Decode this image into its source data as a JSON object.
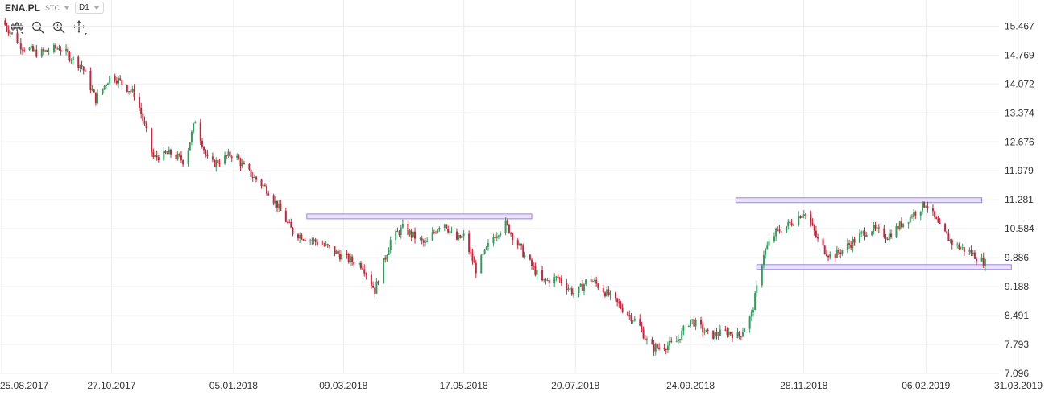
{
  "header": {
    "symbol": "ENA.PL",
    "market": "STC",
    "interval": "D1"
  },
  "toolbar": {
    "icons": [
      "candlestick-settings-icon",
      "zoom-out-icon",
      "zoom-in-icon",
      "crosshair-move-icon"
    ]
  },
  "colors": {
    "up": "#2e9e5b",
    "down": "#c8253b",
    "zone_fill": "#e6dcff",
    "zone_stroke": "#9b86e8",
    "grid": "#ededed"
  },
  "chart_data": {
    "type": "candlestick",
    "title": "",
    "ylim": [
      7.096,
      15.9
    ],
    "y_ticks": [
      "15.467",
      "14.769",
      "14.072",
      "13.374",
      "12.676",
      "11.979",
      "11.281",
      "10.584",
      "9.886",
      "9.188",
      "8.491",
      "7.793",
      "7.096"
    ],
    "x_ticks": [
      "25.08.2017",
      "27.10.2017",
      "05.01.2018",
      "09.03.2018",
      "17.05.2018",
      "20.07.2018",
      "24.09.2018",
      "28.11.2018",
      "06.02.2019",
      "31.03.2019"
    ],
    "x_range": [
      "25.08.2017",
      "31.03.2019"
    ],
    "price_path": [
      [
        "25.08.2017",
        15.6
      ],
      [
        "05.09.2017",
        15.0
      ],
      [
        "15.09.2017",
        14.8
      ],
      [
        "27.09.2017",
        14.95
      ],
      [
        "10.10.2017",
        14.5
      ],
      [
        "18.10.2017",
        13.7
      ],
      [
        "27.10.2017",
        14.3
      ],
      [
        "10.11.2017",
        13.8
      ],
      [
        "20.11.2017",
        12.3
      ],
      [
        "30.11.2017",
        12.4
      ],
      [
        "08.12.2017",
        12.2
      ],
      [
        "14.12.2017",
        13.2
      ],
      [
        "22.12.2017",
        12.1
      ],
      [
        "05.01.2018",
        12.4
      ],
      [
        "12.01.2018",
        12.0
      ],
      [
        "25.01.2018",
        11.5
      ],
      [
        "01.02.2018",
        11.0
      ],
      [
        "08.02.2018",
        10.5
      ],
      [
        "25.02.2018",
        10.2
      ],
      [
        "09.03.2018",
        9.9
      ],
      [
        "20.03.2018",
        9.7
      ],
      [
        "27.03.2018",
        9.1
      ],
      [
        "05.04.2018",
        10.3
      ],
      [
        "12.04.2018",
        10.6
      ],
      [
        "25.04.2018",
        10.2
      ],
      [
        "05.05.2018",
        10.8
      ],
      [
        "12.05.2018",
        10.3
      ],
      [
        "17.05.2018",
        10.4
      ],
      [
        "24.05.2018",
        9.6
      ],
      [
        "03.06.2018",
        10.4
      ],
      [
        "10.06.2018",
        10.7
      ],
      [
        "20.06.2018",
        10.0
      ],
      [
        "01.07.2018",
        9.3
      ],
      [
        "10.07.2018",
        9.4
      ],
      [
        "20.07.2018",
        9.0
      ],
      [
        "28.07.2018",
        9.4
      ],
      [
        "05.08.2018",
        9.1
      ],
      [
        "15.08.2018",
        8.7
      ],
      [
        "25.08.2018",
        8.3
      ],
      [
        "01.09.2018",
        7.7
      ],
      [
        "08.09.2018",
        7.75
      ],
      [
        "15.09.2018",
        7.8
      ],
      [
        "24.09.2018",
        8.4
      ],
      [
        "05.10.2018",
        8.0
      ],
      [
        "15.10.2018",
        8.1
      ],
      [
        "22.10.2018",
        8.0
      ],
      [
        "29.10.2018",
        8.5
      ],
      [
        "05.11.2018",
        10.0
      ],
      [
        "12.11.2018",
        10.5
      ],
      [
        "20.11.2018",
        10.7
      ],
      [
        "28.11.2018",
        11.0
      ],
      [
        "02.12.2018",
        10.7
      ],
      [
        "07.12.2018",
        10.2
      ],
      [
        "14.12.2018",
        9.9
      ],
      [
        "24.12.2018",
        10.2
      ],
      [
        "05.01.2019",
        10.6
      ],
      [
        "15.01.2019",
        10.4
      ],
      [
        "23.01.2019",
        10.7
      ],
      [
        "06.02.2019",
        11.2
      ],
      [
        "14.02.2019",
        10.6
      ],
      [
        "22.02.2019",
        10.2
      ],
      [
        "04.03.2019",
        10.0
      ],
      [
        "12.03.2019",
        9.75
      ]
    ],
    "zones": [
      {
        "start": "16.02.2018",
        "end": "25.06.2018",
        "level": 10.88
      },
      {
        "start": "20.10.2018",
        "end": "10.03.2019",
        "level": 11.27
      },
      {
        "start": "01.11.2018",
        "end": "27.03.2019",
        "level": 9.66
      }
    ]
  }
}
